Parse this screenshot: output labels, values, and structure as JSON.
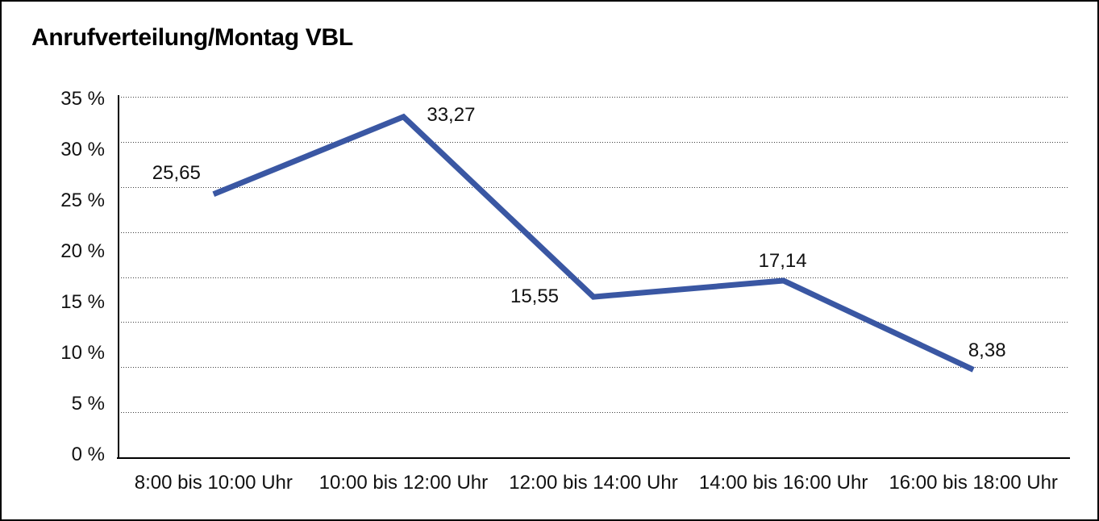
{
  "chart_data": {
    "type": "line",
    "title": "Anrufverteilung/Montag VBL",
    "categories": [
      "8:00 bis 10:00 Uhr",
      "10:00 bis 12:00 Uhr",
      "12:00 bis 14:00 Uhr",
      "14:00 bis 16:00 Uhr",
      "16:00 bis 18:00 Uhr"
    ],
    "values": [
      25.65,
      33.27,
      15.55,
      17.14,
      8.38
    ],
    "value_labels": [
      "25,65",
      "33,27",
      "15,55",
      "17,14",
      "8,38"
    ],
    "xlabel": "",
    "ylabel": "",
    "ylim": [
      0,
      35
    ],
    "ytick_step": 5,
    "ytick_labels": [
      "35 %",
      "30 %",
      "25 %",
      "20 %",
      "15 %",
      "10 %",
      "5 %",
      "0 %"
    ],
    "grid": "horizontal dotted",
    "legend": "none",
    "line_color": "#3A57A3",
    "axis_color": "#000000",
    "text_color": "#111111",
    "background_color": "#FFFFFF"
  }
}
